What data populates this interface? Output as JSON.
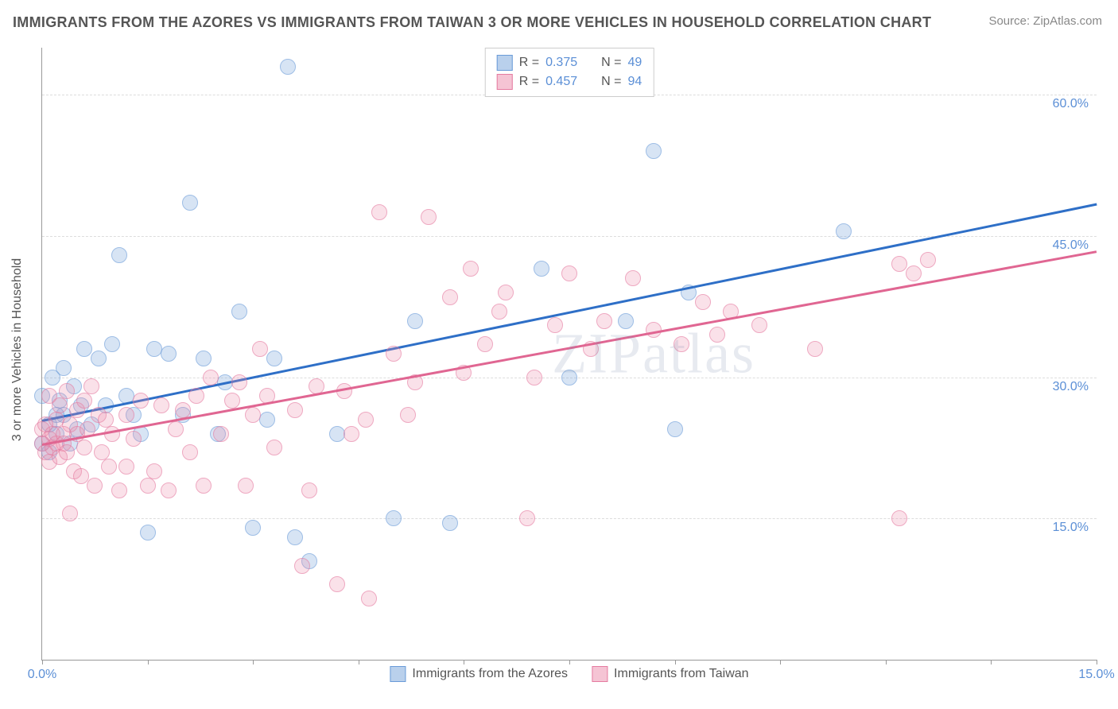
{
  "title": "IMMIGRANTS FROM THE AZORES VS IMMIGRANTS FROM TAIWAN 3 OR MORE VEHICLES IN HOUSEHOLD CORRELATION CHART",
  "source": "Source: ZipAtlas.com",
  "ylabel": "3 or more Vehicles in Household",
  "watermark_a": "ZIP",
  "watermark_b": "atlas",
  "chart": {
    "type": "scatter",
    "background_color": "#ffffff",
    "grid_color": "#dddddd",
    "axis_color": "#999999",
    "tick_label_color": "#5b8fd6",
    "xlim": [
      0,
      15
    ],
    "ylim": [
      0,
      65
    ],
    "x_ticks": [
      0,
      1.5,
      3,
      4.5,
      6,
      7.5,
      9,
      10.5,
      12,
      13.5,
      15
    ],
    "x_tick_labels": {
      "0": "0.0%",
      "15": "15.0%"
    },
    "y_gridlines": [
      15,
      30,
      45,
      60
    ],
    "y_tick_labels": {
      "15": "15.0%",
      "30": "30.0%",
      "45": "45.0%",
      "60": "60.0%"
    },
    "series": [
      {
        "name": "Immigrants from the Azores",
        "color_fill": "rgba(120,165,220,0.45)",
        "color_stroke": "#6a9bd8",
        "swatch_fill": "#b9d0ec",
        "swatch_border": "#6a9bd8",
        "line_color": "#2e6fc7",
        "R": "0.375",
        "N": "49",
        "trend": {
          "x1": 0.0,
          "y1": 25.5,
          "x2": 15.0,
          "y2": 48.5
        },
        "points": [
          [
            0.0,
            28
          ],
          [
            0.0,
            23
          ],
          [
            0.1,
            25
          ],
          [
            0.1,
            22
          ],
          [
            0.15,
            30
          ],
          [
            0.2,
            26
          ],
          [
            0.2,
            24
          ],
          [
            0.25,
            27.5
          ],
          [
            0.3,
            26
          ],
          [
            0.3,
            31
          ],
          [
            0.4,
            23
          ],
          [
            0.45,
            29
          ],
          [
            0.5,
            24.5
          ],
          [
            0.55,
            27
          ],
          [
            0.6,
            33
          ],
          [
            0.7,
            25
          ],
          [
            0.8,
            32
          ],
          [
            0.9,
            27
          ],
          [
            1.0,
            33.5
          ],
          [
            1.1,
            43
          ],
          [
            1.2,
            28
          ],
          [
            1.3,
            26
          ],
          [
            1.4,
            24
          ],
          [
            1.5,
            13.5
          ],
          [
            1.6,
            33
          ],
          [
            1.8,
            32.5
          ],
          [
            2.0,
            26
          ],
          [
            2.1,
            48.5
          ],
          [
            2.3,
            32
          ],
          [
            2.5,
            24
          ],
          [
            2.6,
            29.5
          ],
          [
            2.8,
            37
          ],
          [
            3.0,
            14
          ],
          [
            3.2,
            25.5
          ],
          [
            3.3,
            32
          ],
          [
            3.5,
            63
          ],
          [
            3.6,
            13
          ],
          [
            3.8,
            10.5
          ],
          [
            4.2,
            24
          ],
          [
            5.0,
            15
          ],
          [
            5.3,
            36
          ],
          [
            5.8,
            14.5
          ],
          [
            7.1,
            41.5
          ],
          [
            7.5,
            30
          ],
          [
            8.3,
            36
          ],
          [
            8.7,
            54
          ],
          [
            9.0,
            24.5
          ],
          [
            9.2,
            39
          ],
          [
            11.4,
            45.5
          ]
        ]
      },
      {
        "name": "Immigrants from Taiwan",
        "color_fill": "rgba(235,140,170,0.4)",
        "color_stroke": "#e57ba0",
        "swatch_fill": "#f5c4d4",
        "swatch_border": "#e57ba0",
        "line_color": "#e06692",
        "R": "0.457",
        "N": "94",
        "trend": {
          "x1": 0.0,
          "y1": 23.0,
          "x2": 15.0,
          "y2": 43.5
        },
        "points": [
          [
            0.0,
            23
          ],
          [
            0.0,
            24.5
          ],
          [
            0.05,
            22
          ],
          [
            0.05,
            25
          ],
          [
            0.1,
            23.5
          ],
          [
            0.1,
            21
          ],
          [
            0.1,
            28
          ],
          [
            0.15,
            24
          ],
          [
            0.15,
            22.5
          ],
          [
            0.2,
            23
          ],
          [
            0.2,
            25.5
          ],
          [
            0.25,
            21.5
          ],
          [
            0.25,
            27
          ],
          [
            0.3,
            24
          ],
          [
            0.3,
            23
          ],
          [
            0.35,
            28.5
          ],
          [
            0.35,
            22
          ],
          [
            0.4,
            15.5
          ],
          [
            0.4,
            25
          ],
          [
            0.45,
            20
          ],
          [
            0.5,
            26.5
          ],
          [
            0.5,
            24
          ],
          [
            0.55,
            19.5
          ],
          [
            0.6,
            22.5
          ],
          [
            0.6,
            27.5
          ],
          [
            0.65,
            24.5
          ],
          [
            0.7,
            29
          ],
          [
            0.75,
            18.5
          ],
          [
            0.8,
            26
          ],
          [
            0.85,
            22
          ],
          [
            0.9,
            25.5
          ],
          [
            0.95,
            20.5
          ],
          [
            1.0,
            24
          ],
          [
            1.1,
            18
          ],
          [
            1.2,
            26
          ],
          [
            1.2,
            20.5
          ],
          [
            1.3,
            23.5
          ],
          [
            1.4,
            27.5
          ],
          [
            1.5,
            18.5
          ],
          [
            1.6,
            20
          ],
          [
            1.7,
            27
          ],
          [
            1.8,
            18
          ],
          [
            1.9,
            24.5
          ],
          [
            2.0,
            26.5
          ],
          [
            2.1,
            22
          ],
          [
            2.2,
            28
          ],
          [
            2.3,
            18.5
          ],
          [
            2.4,
            30
          ],
          [
            2.55,
            24
          ],
          [
            2.7,
            27.5
          ],
          [
            2.8,
            29.5
          ],
          [
            2.9,
            18.5
          ],
          [
            3.0,
            26
          ],
          [
            3.1,
            33
          ],
          [
            3.2,
            28
          ],
          [
            3.3,
            22.5
          ],
          [
            3.6,
            26.5
          ],
          [
            3.7,
            10
          ],
          [
            3.8,
            18
          ],
          [
            3.9,
            29
          ],
          [
            4.2,
            8
          ],
          [
            4.3,
            28.5
          ],
          [
            4.4,
            24
          ],
          [
            4.6,
            25.5
          ],
          [
            4.65,
            6.5
          ],
          [
            4.8,
            47.5
          ],
          [
            5.0,
            32.5
          ],
          [
            5.2,
            26
          ],
          [
            5.3,
            29.5
          ],
          [
            5.5,
            47
          ],
          [
            5.8,
            38.5
          ],
          [
            6.0,
            30.5
          ],
          [
            6.1,
            41.5
          ],
          [
            6.3,
            33.5
          ],
          [
            6.5,
            37
          ],
          [
            6.6,
            39
          ],
          [
            6.9,
            15
          ],
          [
            7.0,
            30
          ],
          [
            7.3,
            35.5
          ],
          [
            7.5,
            41
          ],
          [
            7.8,
            33
          ],
          [
            8.0,
            36
          ],
          [
            8.4,
            40.5
          ],
          [
            8.7,
            35
          ],
          [
            9.1,
            33.5
          ],
          [
            9.4,
            38
          ],
          [
            9.6,
            34.5
          ],
          [
            9.8,
            37
          ],
          [
            10.2,
            35.5
          ],
          [
            11.0,
            33
          ],
          [
            12.2,
            42
          ],
          [
            12.2,
            15
          ],
          [
            12.4,
            41
          ],
          [
            12.6,
            42.5
          ]
        ]
      }
    ]
  },
  "legend_top": {
    "r_label": "R =",
    "n_label": "N ="
  }
}
